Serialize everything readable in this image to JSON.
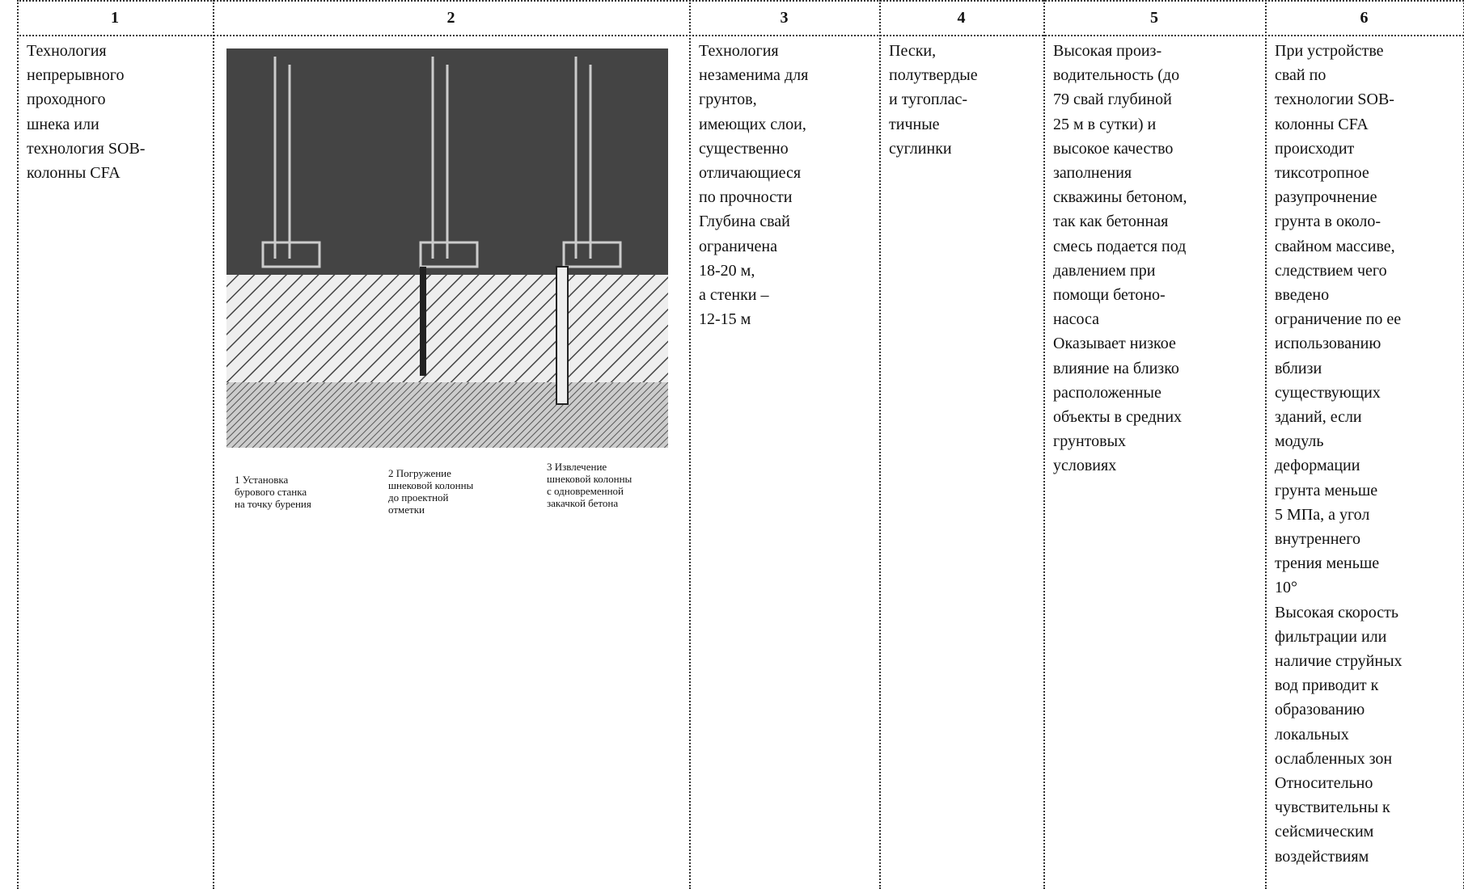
{
  "table": {
    "header": [
      "1",
      "2",
      "3",
      "4",
      "5",
      "6"
    ],
    "rows": [
      [
        [
          "Технология",
          "непрерывного",
          "проходного",
          "шнека или",
          "технология SOB-",
          "колонны CFA"
        ],
        {
          "captions": [
            [
              "1 Установка",
              "бурового станка",
              "на точку бурения"
            ],
            [
              "2 Погружение",
              "шнековой колонны",
              "до проектной",
              "отметки"
            ],
            [
              "3 Извлечение",
              "шнековой колонны",
              "с одновременной",
              "закачкой бетона"
            ]
          ]
        },
        [
          "Технология",
          "незаменима для",
          "грунтов,",
          "имеющих слои,",
          "существенно",
          "отличающиеся",
          "по прочности",
          "Глубина свай",
          "ограничена",
          "18-20 м,",
          "а стенки –",
          "12-15 м"
        ],
        [
          "Пески,",
          "полутвердые",
          "и тугоплас-",
          "тичные",
          "суглинки"
        ],
        [
          "Высокая произ-",
          "водительность (до",
          "79 свай глубиной",
          "25 м в сутки) и",
          "высокое качество",
          "заполнения",
          "скважины бетоном,",
          "так как бетонная",
          "смесь подается под",
          "давлением при",
          "помощи бетоно-",
          "насоса",
          "Оказывает низкое",
          "влияние на близко",
          "расположенные",
          "объекты в средних",
          "грунтовых",
          "условиях"
        ],
        [
          "При устройстве",
          "свай по",
          "технологии SOB-",
          "колонны CFA",
          "происходит",
          "тиксотропное",
          "разупрочнение",
          "грунта в около-",
          "свайном массиве,",
          "следствием чего",
          "введено",
          "ограничение по ее",
          "использованию",
          "вблизи",
          "существующих",
          "зданий, если",
          "модуль",
          "деформации",
          "грунта меньше",
          "5 МПа, а угол",
          "внутреннего",
          "трения меньше",
          "10°",
          "Высокая скорость",
          "фильтрации или",
          "наличие струйных",
          "вод приводит к",
          "образованию",
          "локальных",
          "ослабленных зон",
          "Относительно",
          "чувствительны к",
          "сейсмическим",
          "воздействиям"
        ]
      ]
    ]
  }
}
